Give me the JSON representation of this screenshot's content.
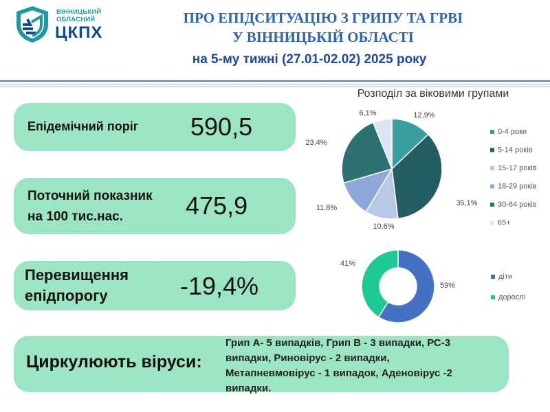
{
  "logo": {
    "line1": "ВІННИЦЬКИЙ",
    "line2": "ОБЛАСНИЙ",
    "abbr": "ЦКПХ"
  },
  "header": {
    "title_line1": "ПРО ЕПІДСИТУАЦІЮ З ГРИПУ ТА ГРВІ",
    "title_line2": "У ВІННИЦЬКІЙ ОБЛАСТІ",
    "subtitle": "на 5-му тижні (27.01-02.02) 2025 року"
  },
  "cards": {
    "threshold": {
      "label": "Епідемічний поріг",
      "value": "590,5"
    },
    "current": {
      "label_line1": "Поточний показник",
      "label_line2": "на 100 тис.нас.",
      "value": "475,9"
    },
    "excess": {
      "label_line1": "Перевищення",
      "label_line2": "епідпорогу",
      "value": "-19,4%"
    }
  },
  "viruses": {
    "label": "Циркулюють віруси:",
    "line1": "Грип А- 5 випадків, Грип В - 3 випадки, РС-3",
    "line2": "випадки,  Риновірус - 2 випадки,",
    "line3": "Метапневмовірус - 1 випадок, Аденовірус -2",
    "line4": "випадки."
  },
  "chart_data": [
    {
      "type": "pie",
      "title": "Розподіл за віковими групами",
      "categories": [
        "0-4 роки",
        "5-14 років",
        "15-17 років",
        "18-29 років",
        "30-64 років",
        "65+"
      ],
      "values": [
        12.9,
        35.1,
        10.6,
        11.8,
        23.4,
        6.1
      ],
      "labels": [
        "12,9%",
        "35,1%",
        "10,6%",
        "11,8%",
        "23,4%",
        "6,1%"
      ],
      "colors": [
        "#3a9e9e",
        "#245e62",
        "#b8c8e6",
        "#8ea8db",
        "#2c7272",
        "#dde5f4"
      ],
      "legend": "right"
    },
    {
      "type": "pie",
      "subtype": "donut",
      "categories": [
        "діти",
        "дорослі"
      ],
      "values": [
        59,
        41
      ],
      "labels": [
        "59%",
        "41%"
      ],
      "colors": [
        "#4471c4",
        "#1ec994"
      ],
      "legend": "right"
    }
  ]
}
